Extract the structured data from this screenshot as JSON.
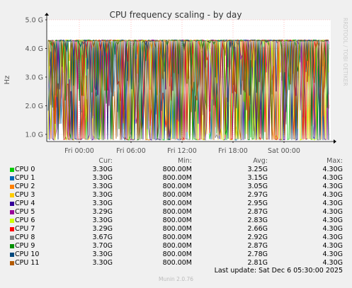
{
  "chart_data": {
    "type": "line",
    "title": "CPU frequency scaling - by day",
    "ylabel": "Hz",
    "watermark": "RRDTOOL / TOBI OETIKER",
    "yticks": [
      "1.0 G",
      "2.0 G",
      "3.0 G",
      "4.0 G",
      "5.0 G"
    ],
    "ylim": [
      0.75,
      5.0
    ],
    "xticks": [
      "Fri 00:00",
      "Fri 06:00",
      "Fri 12:00",
      "Fri 18:00",
      "Sat 00:00"
    ],
    "grid": true,
    "columns": [
      "Cur:",
      "Min:",
      "Avg:",
      "Max:"
    ],
    "series": [
      {
        "name": "CPU 0",
        "color": "#00cc00",
        "cur": "3.30G",
        "min": "800.00M",
        "avg": "3.25G",
        "max": "4.30G"
      },
      {
        "name": "CPU 1",
        "color": "#0066b3",
        "cur": "3.30G",
        "min": "800.00M",
        "avg": "3.15G",
        "max": "4.30G"
      },
      {
        "name": "CPU 2",
        "color": "#ff8000",
        "cur": "3.30G",
        "min": "800.00M",
        "avg": "3.05G",
        "max": "4.30G"
      },
      {
        "name": "CPU 3",
        "color": "#ffcc00",
        "cur": "3.30G",
        "min": "800.00M",
        "avg": "2.97G",
        "max": "4.30G"
      },
      {
        "name": "CPU 4",
        "color": "#330099",
        "cur": "3.30G",
        "min": "800.00M",
        "avg": "2.95G",
        "max": "4.30G"
      },
      {
        "name": "CPU 5",
        "color": "#990099",
        "cur": "3.29G",
        "min": "800.00M",
        "avg": "2.87G",
        "max": "4.30G"
      },
      {
        "name": "CPU 6",
        "color": "#ccff00",
        "cur": "3.30G",
        "min": "800.00M",
        "avg": "2.83G",
        "max": "4.30G"
      },
      {
        "name": "CPU 7",
        "color": "#ff0000",
        "cur": "3.29G",
        "min": "800.00M",
        "avg": "2.66G",
        "max": "4.30G"
      },
      {
        "name": "CPU 8",
        "color": "#808080",
        "cur": "3.67G",
        "min": "800.00M",
        "avg": "2.92G",
        "max": "4.30G"
      },
      {
        "name": "CPU 9",
        "color": "#008f00",
        "cur": "3.70G",
        "min": "800.00M",
        "avg": "2.87G",
        "max": "4.30G"
      },
      {
        "name": "CPU 10",
        "color": "#00487d",
        "cur": "3.30G",
        "min": "800.00M",
        "avg": "2.78G",
        "max": "4.30G"
      },
      {
        "name": "CPU 11",
        "color": "#b35a00",
        "cur": "3.30G",
        "min": "800.00M",
        "avg": "2.81G",
        "max": "4.30G"
      }
    ]
  },
  "footer": {
    "last_update": "Last update: Sat Dec  6 05:30:00 2025",
    "munin": "Munin 2.0.76"
  }
}
